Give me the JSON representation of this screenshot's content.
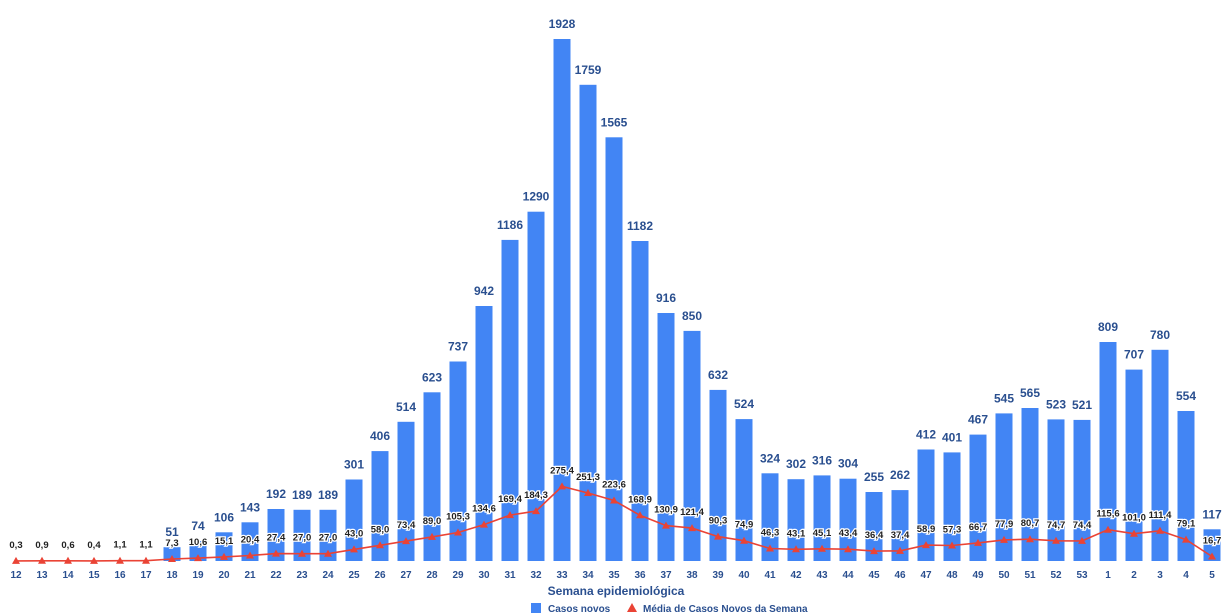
{
  "chart_data": {
    "type": "bar",
    "xlabel": "Semana epidemiológica",
    "categories": [
      "12",
      "13",
      "14",
      "15",
      "16",
      "17",
      "18",
      "19",
      "20",
      "21",
      "22",
      "23",
      "24",
      "25",
      "26",
      "27",
      "28",
      "29",
      "30",
      "31",
      "32",
      "33",
      "34",
      "35",
      "36",
      "37",
      "38",
      "39",
      "40",
      "41",
      "42",
      "43",
      "44",
      "45",
      "46",
      "47",
      "48",
      "49",
      "50",
      "51",
      "52",
      "53",
      "1",
      "2",
      "3",
      "4",
      "5"
    ],
    "series": [
      {
        "name": "Casos novos",
        "kind": "bar",
        "color": "#4285f4",
        "values": [
          0,
          0,
          0,
          0,
          0,
          0,
          51,
          74,
          106,
          143,
          192,
          189,
          189,
          301,
          406,
          514,
          623,
          737,
          942,
          1186,
          1290,
          1928,
          1759,
          1565,
          1182,
          916,
          850,
          632,
          524,
          324,
          302,
          316,
          304,
          255,
          262,
          412,
          401,
          467,
          545,
          565,
          523,
          521,
          809,
          707,
          780,
          554,
          117
        ],
        "labels": [
          "",
          "",
          "",
          "",
          "",
          "",
          "51",
          "74",
          "106",
          "143",
          "192",
          "189",
          "189",
          "301",
          "406",
          "514",
          "623",
          "737",
          "942",
          "1186",
          "1290",
          "1928",
          "1759",
          "1565",
          "1182",
          "916",
          "850",
          "632",
          "524",
          "324",
          "302",
          "316",
          "304",
          "255",
          "262",
          "412",
          "401",
          "467",
          "545",
          "565",
          "523",
          "521",
          "809",
          "707",
          "780",
          "554",
          "117"
        ]
      },
      {
        "name": "Média de Casos Novos da Semana",
        "kind": "line",
        "color": "#ea4335",
        "values": [
          0.3,
          0.9,
          0.6,
          0.4,
          1.1,
          1.1,
          7.3,
          10.6,
          15.1,
          20.4,
          27.4,
          27.0,
          27.0,
          43.0,
          58.0,
          73.4,
          89.0,
          105.3,
          134.6,
          169.4,
          184.3,
          275.4,
          251.3,
          223.6,
          168.9,
          130.9,
          121.4,
          90.3,
          74.9,
          46.3,
          43.1,
          45.1,
          43.4,
          36.4,
          37.4,
          58.9,
          57.3,
          66.7,
          77.9,
          80.7,
          74.7,
          74.4,
          115.6,
          101.0,
          111.4,
          79.1,
          16.7
        ],
        "labels": [
          "0,3",
          "0,9",
          "0,6",
          "0,4",
          "1,1",
          "1,1",
          "7,3",
          "10,6",
          "15,1",
          "20,4",
          "27,4",
          "27,0",
          "27,0",
          "43,0",
          "58,0",
          "73,4",
          "89,0",
          "105,3",
          "134,6",
          "169,4",
          "184,3",
          "275,4",
          "251,3",
          "223,6",
          "168,9",
          "130,9",
          "121,4",
          "90,3",
          "74,9",
          "46,3",
          "43,1",
          "45,1",
          "43,4",
          "36,4",
          "37,4",
          "58,9",
          "57,3",
          "66,7",
          "77,9",
          "80,7",
          "74,7",
          "74,4",
          "115,6",
          "101,0",
          "111,4",
          "79,1",
          "16,7"
        ]
      }
    ],
    "ylim": [
      0,
      2000
    ],
    "grid": false,
    "legend_position": "bottom-center"
  }
}
